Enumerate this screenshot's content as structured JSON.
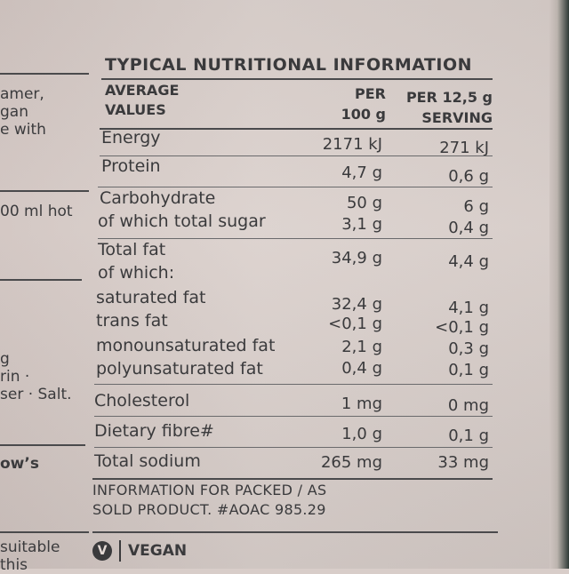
{
  "left_column": {
    "lines": [
      "amer,",
      "gan",
      "e with",
      "00 ml hot",
      "g",
      "rin ·",
      "ser · Salt.",
      "ow’s",
      "suitable",
      "this"
    ]
  },
  "panel": {
    "title": "TYPICAL NUTRITIONAL INFORMATION",
    "header": {
      "col1_line1": "AVERAGE",
      "col1_line2": "VALUES",
      "col2_line1": "PER",
      "col2_line2": "100 g",
      "col3_line1": "PER 12,5 g",
      "col3_line2": "SERVING"
    },
    "rows": [
      {
        "label": "Energy",
        "per100": "2171 kJ",
        "serving": "271 kJ"
      },
      {
        "label": "Protein",
        "per100": "4,7 g",
        "serving": "0,6 g"
      },
      {
        "label": "Carbohydrate",
        "per100": "50 g",
        "serving": "6 g"
      },
      {
        "label": "of which total sugar",
        "per100": "3,1 g",
        "serving": "0,4 g"
      },
      {
        "label": "Total fat",
        "per100": "34,9 g",
        "serving": "4,4 g"
      },
      {
        "label": "of which:",
        "per100": "",
        "serving": ""
      },
      {
        "label": "saturated fat",
        "per100": "32,4 g",
        "serving": "4,1 g"
      },
      {
        "label": "trans fat",
        "per100": "<0,1 g",
        "serving": "<0,1 g"
      },
      {
        "label": "monounsaturated fat",
        "per100": "2,1 g",
        "serving": "0,3 g"
      },
      {
        "label": "polyunsaturated fat",
        "per100": "0,4 g",
        "serving": "0,1 g"
      },
      {
        "label": "Cholesterol",
        "per100": "1 mg",
        "serving": "0 mg"
      },
      {
        "label": "Dietary fibre#",
        "per100": "1,0 g",
        "serving": "0,1 g"
      },
      {
        "label": "Total sodium",
        "per100": "265 mg",
        "serving": "33 mg"
      }
    ],
    "footer_line1": "INFORMATION FOR PACKED / AS",
    "footer_line2": "SOLD PRODUCT. #AOAC 985.29",
    "vegan_icon_letter": "V",
    "vegan_label": "VEGAN"
  }
}
